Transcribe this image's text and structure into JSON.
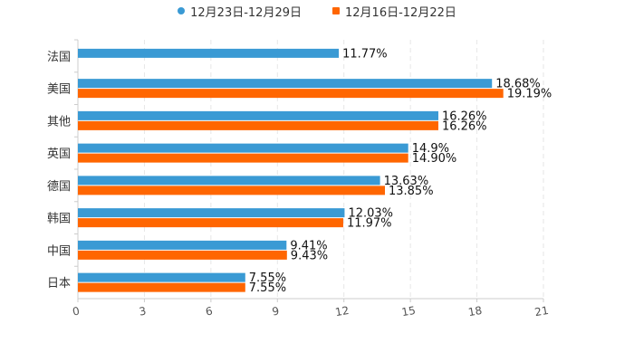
{
  "chart_data": {
    "type": "bar",
    "orientation": "horizontal",
    "categories": [
      "法国",
      "美国",
      "其他",
      "英国",
      "德国",
      "韩国",
      "中国",
      "日本"
    ],
    "series": [
      {
        "name": "12月23日-12月29日",
        "color": "#3a9ad4",
        "values": [
          11.77,
          18.68,
          16.26,
          14.9,
          13.63,
          12.03,
          9.41,
          7.55
        ],
        "labels": [
          "11.77%",
          "18.68%",
          "16.26%",
          "14.9%",
          "13.63%",
          "12.03%",
          "9.41%",
          "7.55%"
        ]
      },
      {
        "name": "12月16日-12月22日",
        "color": "#ff6600",
        "values": [
          null,
          19.19,
          16.26,
          14.9,
          13.85,
          11.97,
          9.43,
          7.55
        ],
        "labels": [
          "",
          "19.19%",
          "16.26%",
          "14.90%",
          "13.85%",
          "11.97%",
          "9.43%",
          "7.55%"
        ]
      }
    ],
    "xlim": [
      0,
      21
    ],
    "xticks": [
      "0",
      "3",
      "6",
      "9",
      "12",
      "15",
      "18",
      "21"
    ],
    "grid": true,
    "legend": "top-center",
    "title": "",
    "xlabel": "",
    "ylabel": ""
  }
}
